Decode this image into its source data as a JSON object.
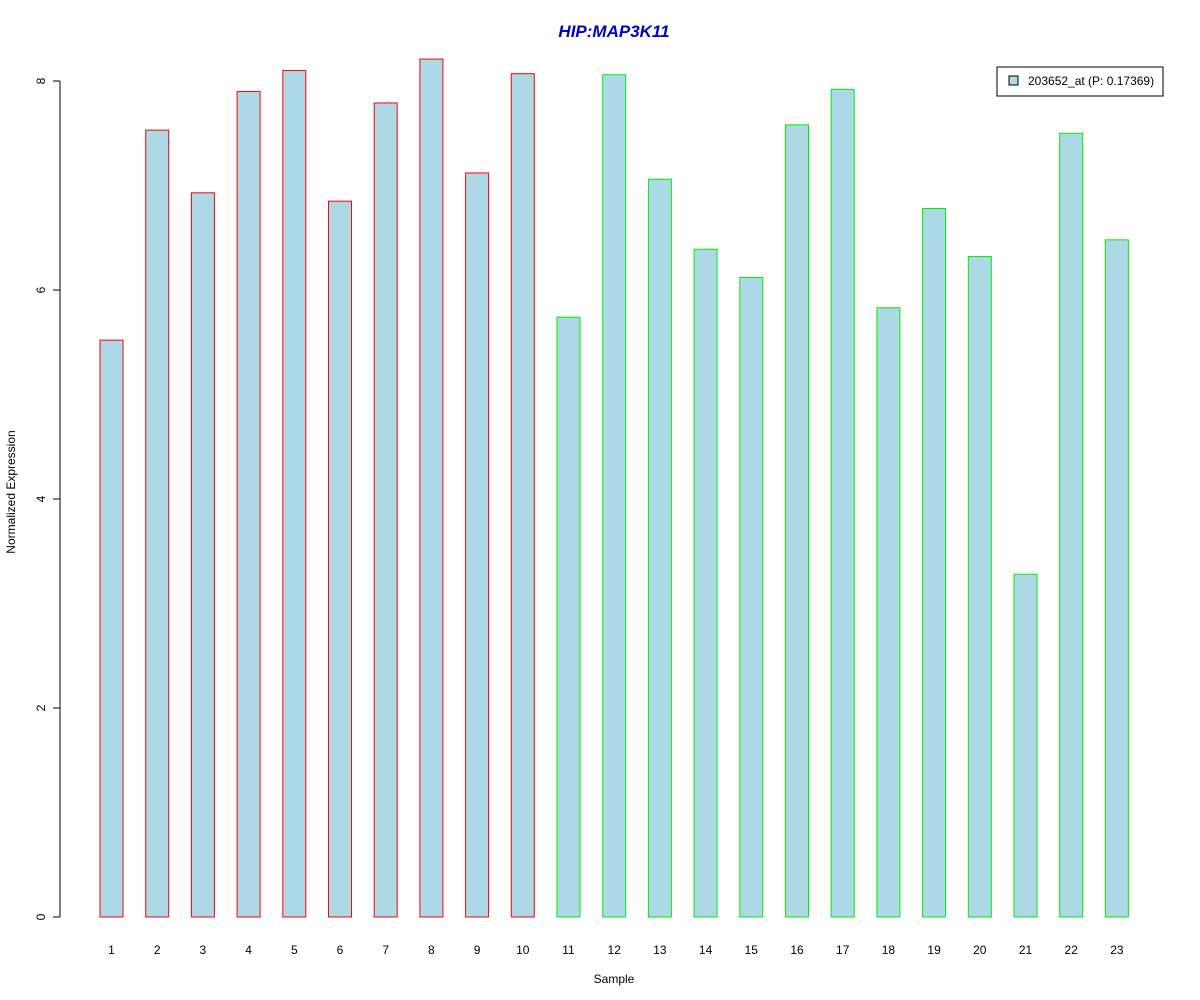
{
  "chart_data": {
    "type": "bar",
    "title": "HIP:MAP3K11",
    "xlabel": "Sample",
    "ylabel": "Normalized Expression",
    "categories": [
      "1",
      "2",
      "3",
      "4",
      "5",
      "6",
      "7",
      "8",
      "9",
      "10",
      "11",
      "12",
      "13",
      "14",
      "15",
      "16",
      "17",
      "18",
      "19",
      "20",
      "21",
      "22",
      "23"
    ],
    "values": [
      5.52,
      7.53,
      6.93,
      7.9,
      8.1,
      6.85,
      7.79,
      8.21,
      7.12,
      8.07,
      5.74,
      8.06,
      7.06,
      6.39,
      6.12,
      7.58,
      7.92,
      5.83,
      6.78,
      6.32,
      3.28,
      7.5,
      6.48
    ],
    "group_border_colors": [
      "#ff0000",
      "#ff0000",
      "#ff0000",
      "#ff0000",
      "#ff0000",
      "#ff0000",
      "#ff0000",
      "#ff0000",
      "#ff0000",
      "#ff0000",
      "#00ee00",
      "#00ee00",
      "#00ee00",
      "#00ee00",
      "#00ee00",
      "#00ee00",
      "#00ee00",
      "#00ee00",
      "#00ee00",
      "#00ee00",
      "#00ee00",
      "#00ee00",
      "#00ee00"
    ],
    "y_ticks": [
      0,
      2,
      4,
      6,
      8
    ],
    "ylim": [
      0,
      8.4
    ],
    "grid": false,
    "legend": {
      "placement": "top-right",
      "entries": [
        {
          "label": "203652_at (P: 0.17369)",
          "color": "#add8e6"
        }
      ]
    },
    "colors": {
      "bar_fill": "#add8e6",
      "title": "#0000cc"
    }
  }
}
